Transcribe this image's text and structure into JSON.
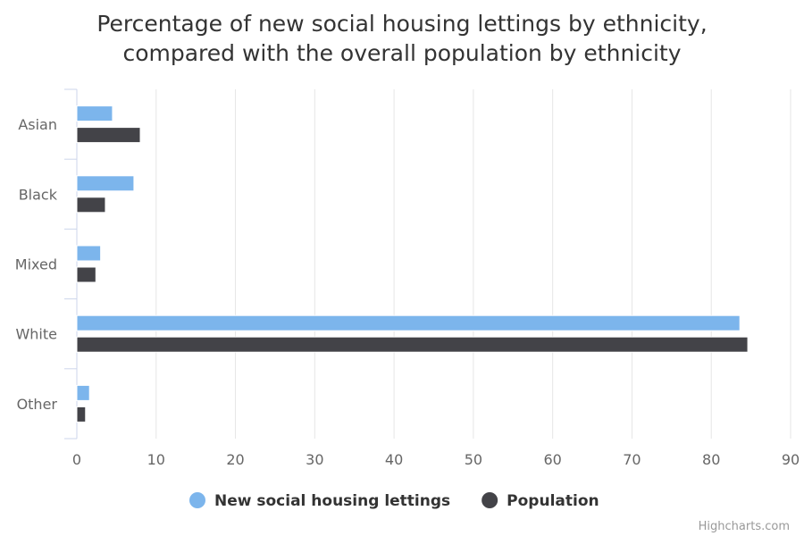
{
  "chart_data": {
    "type": "bar",
    "orientation": "horizontal",
    "title": [
      "Percentage of new social housing lettings by ethnicity,",
      "compared with the overall population by ethnicity"
    ],
    "categories": [
      "Asian",
      "Black",
      "Mixed",
      "White",
      "Other"
    ],
    "series": [
      {
        "name": "New social housing lettings",
        "color": "#7cb5ec",
        "values": [
          4.5,
          7.2,
          3.0,
          83.6,
          1.6
        ]
      },
      {
        "name": "Population",
        "color": "#434348",
        "values": [
          8.0,
          3.6,
          2.4,
          84.6,
          1.1
        ]
      }
    ],
    "xlim": [
      0,
      90
    ],
    "ticks": [
      0,
      10,
      20,
      30,
      40,
      50,
      60,
      70,
      80,
      90
    ],
    "grid": true,
    "legend_position": "bottom-center",
    "credits": "Highcharts.com"
  }
}
